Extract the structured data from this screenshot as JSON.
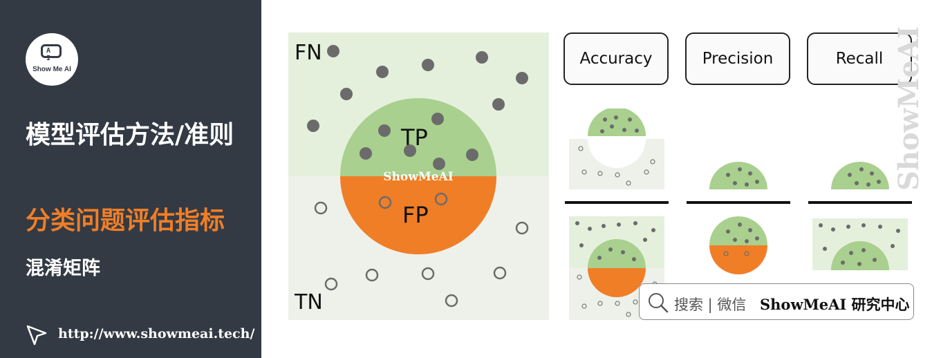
{
  "sidebar": {
    "logo_text": "Show Me AI",
    "logo_glyph": "A I",
    "title": "模型评估方法/准则",
    "section": "分类问题评估指标",
    "subsection": "混淆矩阵",
    "url": "http://www.showmeai.tech/"
  },
  "diagram": {
    "fn_label": "FN",
    "tp_label": "TP",
    "fp_label": "FP",
    "tn_label": "TN",
    "watermark": "ShowMeAI"
  },
  "metrics": {
    "accuracy": "Accuracy",
    "precision": "Precision",
    "recall": "Recall"
  },
  "side_watermark": "ShowMeAI",
  "search": {
    "text": "搜索 | 微信",
    "brand": "ShowMeAI 研究中心"
  },
  "colors": {
    "sidebar_bg": "#333a44",
    "accent_orange": "#f07e27",
    "positive_region": "#e4f0dc",
    "negative_region": "#eef1ea",
    "predicted_positive": "#a9d08e",
    "predicted_negative": "#f07e27",
    "dot": "#6b6b6b"
  }
}
